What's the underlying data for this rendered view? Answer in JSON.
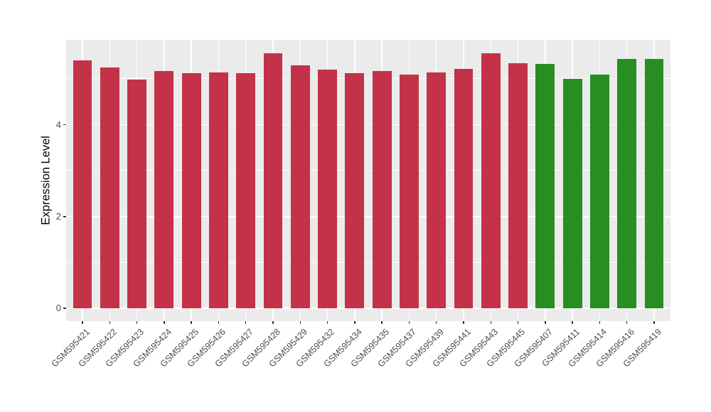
{
  "chart_data": {
    "type": "bar",
    "title": "",
    "xlabel": "",
    "ylabel": "Expression Level",
    "ylim": [
      0,
      5.85
    ],
    "yticks_major": [
      0,
      2,
      4
    ],
    "yticks_minor": [
      1,
      3,
      5
    ],
    "legend": "none",
    "grid": "white major/minor horizontal lines and vertical line at each category on gray panel",
    "plot_background": "#EBEBEB",
    "grid_color": "#FFFFFF",
    "axis_text_color": "#4D4D4D",
    "tick_mark_color": "#333333",
    "colors": {
      "red": "#C33249",
      "green": "#278E22"
    },
    "categories": [
      "GSM595421",
      "GSM595422",
      "GSM595423",
      "GSM595424",
      "GSM595425",
      "GSM595426",
      "GSM595427",
      "GSM595428",
      "GSM595429",
      "GSM595432",
      "GSM595434",
      "GSM595435",
      "GSM595437",
      "GSM595439",
      "GSM595441",
      "GSM595443",
      "GSM595445",
      "GSM595407",
      "GSM595411",
      "GSM595414",
      "GSM595416",
      "GSM595419"
    ],
    "bars": [
      {
        "label": "GSM595421",
        "value": 5.41,
        "group": "red"
      },
      {
        "label": "GSM595422",
        "value": 5.25,
        "group": "red"
      },
      {
        "label": "GSM595423",
        "value": 4.98,
        "group": "red"
      },
      {
        "label": "GSM595424",
        "value": 5.17,
        "group": "red"
      },
      {
        "label": "GSM595425",
        "value": 5.12,
        "group": "red"
      },
      {
        "label": "GSM595426",
        "value": 5.14,
        "group": "red"
      },
      {
        "label": "GSM595427",
        "value": 5.12,
        "group": "red"
      },
      {
        "label": "GSM595428",
        "value": 5.55,
        "group": "red"
      },
      {
        "label": "GSM595429",
        "value": 5.3,
        "group": "red"
      },
      {
        "label": "GSM595432",
        "value": 5.2,
        "group": "red"
      },
      {
        "label": "GSM595434",
        "value": 5.13,
        "group": "red"
      },
      {
        "label": "GSM595435",
        "value": 5.17,
        "group": "red"
      },
      {
        "label": "GSM595437",
        "value": 5.1,
        "group": "red"
      },
      {
        "label": "GSM595439",
        "value": 5.14,
        "group": "red"
      },
      {
        "label": "GSM595441",
        "value": 5.21,
        "group": "red"
      },
      {
        "label": "GSM595443",
        "value": 5.55,
        "group": "red"
      },
      {
        "label": "GSM595445",
        "value": 5.34,
        "group": "red"
      },
      {
        "label": "GSM595407",
        "value": 5.32,
        "group": "green"
      },
      {
        "label": "GSM595411",
        "value": 5.0,
        "group": "green"
      },
      {
        "label": "GSM595414",
        "value": 5.09,
        "group": "green"
      },
      {
        "label": "GSM595416",
        "value": 5.44,
        "group": "green"
      },
      {
        "label": "GSM595419",
        "value": 5.44,
        "group": "green"
      }
    ]
  }
}
